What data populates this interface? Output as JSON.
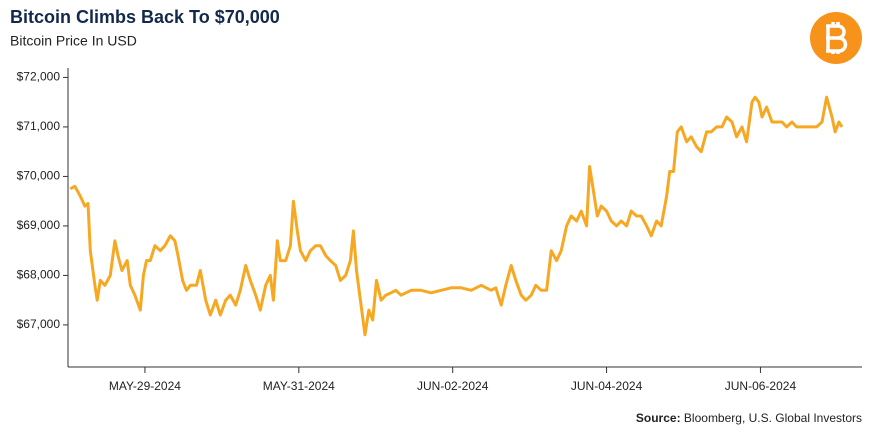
{
  "chart_data": {
    "type": "line",
    "title": "Bitcoin Climbs Back To $70,000",
    "subtitle": "Bitcoin Price In USD",
    "source_label": "Source:",
    "source": "Bloomberg, U.S. Global Investors",
    "color": "#f7a823",
    "x": [
      0.03,
      0.09,
      0.16,
      0.22,
      0.26,
      0.29,
      0.35,
      0.38,
      0.42,
      0.48,
      0.55,
      0.61,
      0.65,
      0.7,
      0.77,
      0.81,
      0.87,
      0.94,
      0.98,
      1.02,
      1.07,
      1.13,
      1.2,
      1.26,
      1.33,
      1.39,
      1.43,
      1.49,
      1.54,
      1.59,
      1.67,
      1.72,
      1.79,
      1.85,
      1.92,
      1.98,
      2.05,
      2.11,
      2.18,
      2.24,
      2.31,
      2.37,
      2.44,
      2.5,
      2.57,
      2.63,
      2.67,
      2.72,
      2.76,
      2.83,
      2.89,
      2.93,
      2.98,
      3.02,
      3.09,
      3.15,
      3.22,
      3.28,
      3.35,
      3.41,
      3.48,
      3.54,
      3.61,
      3.67,
      3.71,
      3.75,
      3.8,
      3.86,
      3.91,
      3.96,
      4.01,
      4.07,
      4.13,
      4.2,
      4.26,
      4.33,
      4.46,
      4.59,
      4.72,
      4.85,
      4.98,
      5.11,
      5.24,
      5.37,
      5.5,
      5.56,
      5.63,
      5.69,
      5.76,
      5.82,
      5.89,
      5.95,
      6.02,
      6.08,
      6.15,
      6.22,
      6.28,
      6.35,
      6.41,
      6.48,
      6.54,
      6.61,
      6.67,
      6.74,
      6.78,
      6.83,
      6.88,
      6.93,
      7.0,
      7.06,
      7.13,
      7.19,
      7.26,
      7.32,
      7.39,
      7.45,
      7.52,
      7.58,
      7.65,
      7.71,
      7.78,
      7.82,
      7.87,
      7.92,
      7.97,
      8.04,
      8.1,
      8.17,
      8.23,
      8.3,
      8.36,
      8.43,
      8.5,
      8.56,
      8.63,
      8.69,
      8.76,
      8.82,
      8.89,
      8.93,
      8.98,
      9.02,
      9.08,
      9.15,
      9.21,
      9.28,
      9.34,
      9.41,
      9.47,
      9.54,
      9.6,
      9.67,
      9.73,
      9.8,
      9.86,
      9.93,
      9.97,
      10.02,
      10.06
    ],
    "values": [
      69750,
      69800,
      69600,
      69400,
      69450,
      68500,
      67800,
      67500,
      67900,
      67800,
      68000,
      68700,
      68400,
      68100,
      68300,
      67800,
      67600,
      67300,
      68000,
      68300,
      68300,
      68600,
      68500,
      68600,
      68800,
      68700,
      68400,
      67900,
      67700,
      67800,
      67800,
      68100,
      67500,
      67200,
      67500,
      67200,
      67500,
      67600,
      67400,
      67700,
      68200,
      67900,
      67600,
      67300,
      67800,
      68000,
      67500,
      68700,
      68300,
      68300,
      68600,
      69500,
      68900,
      68500,
      68300,
      68500,
      68600,
      68600,
      68400,
      68300,
      68200,
      67900,
      68000,
      68300,
      68900,
      68100,
      67500,
      66800,
      67300,
      67100,
      67900,
      67500,
      67600,
      67650,
      67700,
      67600,
      67700,
      67700,
      67650,
      67700,
      67750,
      67750,
      67700,
      67800,
      67700,
      67750,
      67400,
      67800,
      68200,
      67900,
      67600,
      67500,
      67600,
      67800,
      67700,
      67700,
      68500,
      68300,
      68500,
      69000,
      69200,
      69100,
      69300,
      69000,
      70200,
      69700,
      69200,
      69400,
      69300,
      69100,
      69000,
      69100,
      69000,
      69300,
      69200,
      69200,
      69000,
      68800,
      69100,
      69000,
      69600,
      70100,
      70100,
      70900,
      71000,
      70700,
      70800,
      70600,
      70500,
      70900,
      70900,
      71000,
      71000,
      71200,
      71100,
      70800,
      71000,
      70700,
      71500,
      71600,
      71500,
      71200,
      71400,
      71100,
      71100,
      71100,
      71000,
      71100,
      71000,
      71000,
      71000,
      71000,
      71000,
      71100,
      71600,
      71200,
      70900,
      71100,
      71000
    ],
    "xlim": [
      0,
      10.32
    ],
    "xticks": [
      {
        "value": 1,
        "label": "MAY-29-2024"
      },
      {
        "value": 3,
        "label": "MAY-31-2024"
      },
      {
        "value": 5,
        "label": "JUN-02-2024"
      },
      {
        "value": 7,
        "label": "JUN-04-2024"
      },
      {
        "value": 9,
        "label": "JUN-06-2024"
      }
    ],
    "ylim": [
      66150,
      72150
    ],
    "yticks": [
      {
        "value": 67000,
        "label": "$67,000"
      },
      {
        "value": 68000,
        "label": "$68,000"
      },
      {
        "value": 69000,
        "label": "$69,000"
      },
      {
        "value": 70000,
        "label": "$70,000"
      },
      {
        "value": 71000,
        "label": "$71,000"
      },
      {
        "value": 72000,
        "label": "$72,000"
      }
    ],
    "grid": false
  }
}
